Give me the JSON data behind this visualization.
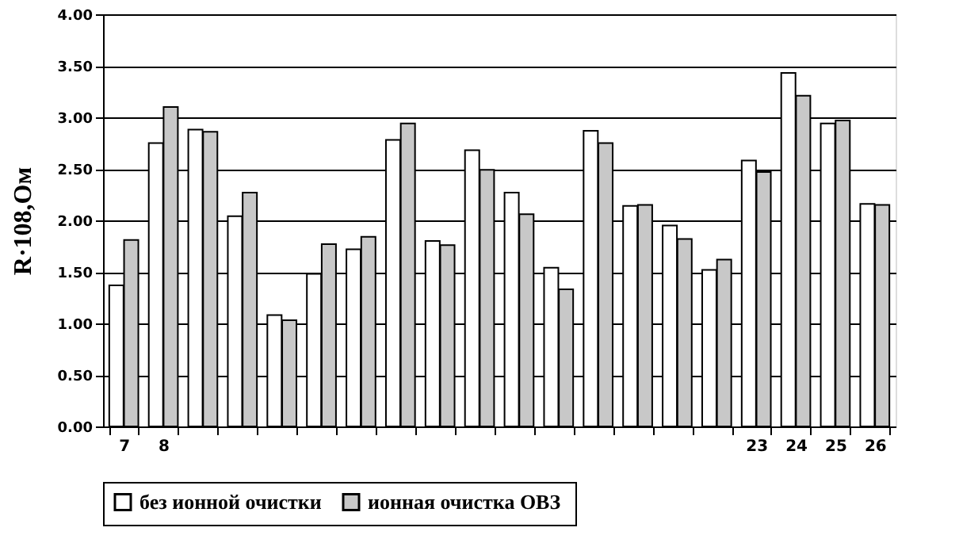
{
  "chart_data": {
    "type": "bar",
    "ylabel": "R·108,Ом",
    "categories": [
      "7",
      "8",
      null,
      null,
      null,
      null,
      null,
      null,
      null,
      null,
      null,
      null,
      null,
      null,
      null,
      null,
      "23",
      "24",
      "25",
      "26"
    ],
    "series": [
      {
        "name": "без ионной очистки",
        "color": "#ffffff",
        "values": [
          1.37,
          2.75,
          2.88,
          2.04,
          1.08,
          1.48,
          1.72,
          2.78,
          1.8,
          2.68,
          2.27,
          1.54,
          2.87,
          2.14,
          1.95,
          1.52,
          2.58,
          3.43,
          2.94,
          2.16
        ]
      },
      {
        "name": "ионная очистка  ОВЗ",
        "color": "#c8c8c8",
        "values": [
          1.81,
          3.1,
          2.86,
          2.27,
          1.03,
          1.77,
          1.84,
          2.94,
          1.76,
          2.49,
          2.06,
          1.33,
          2.75,
          2.15,
          1.82,
          1.62,
          2.47,
          3.21,
          2.97,
          2.15
        ]
      }
    ],
    "ylim": [
      0,
      4
    ],
    "yticks": [
      {
        "value": 0,
        "label": "0.00"
      },
      {
        "value": 0.5,
        "label": "0.50"
      },
      {
        "value": 1,
        "label": "1.00"
      },
      {
        "value": 1.5,
        "label": "1.50"
      },
      {
        "value": 2,
        "label": "2.00"
      },
      {
        "value": 2.5,
        "label": "2.50"
      },
      {
        "value": 3,
        "label": "3.00"
      },
      {
        "value": 3.5,
        "label": "3.50"
      },
      {
        "value": 4,
        "label": "4.00"
      }
    ],
    "grid": "y",
    "legend": "bottom"
  }
}
